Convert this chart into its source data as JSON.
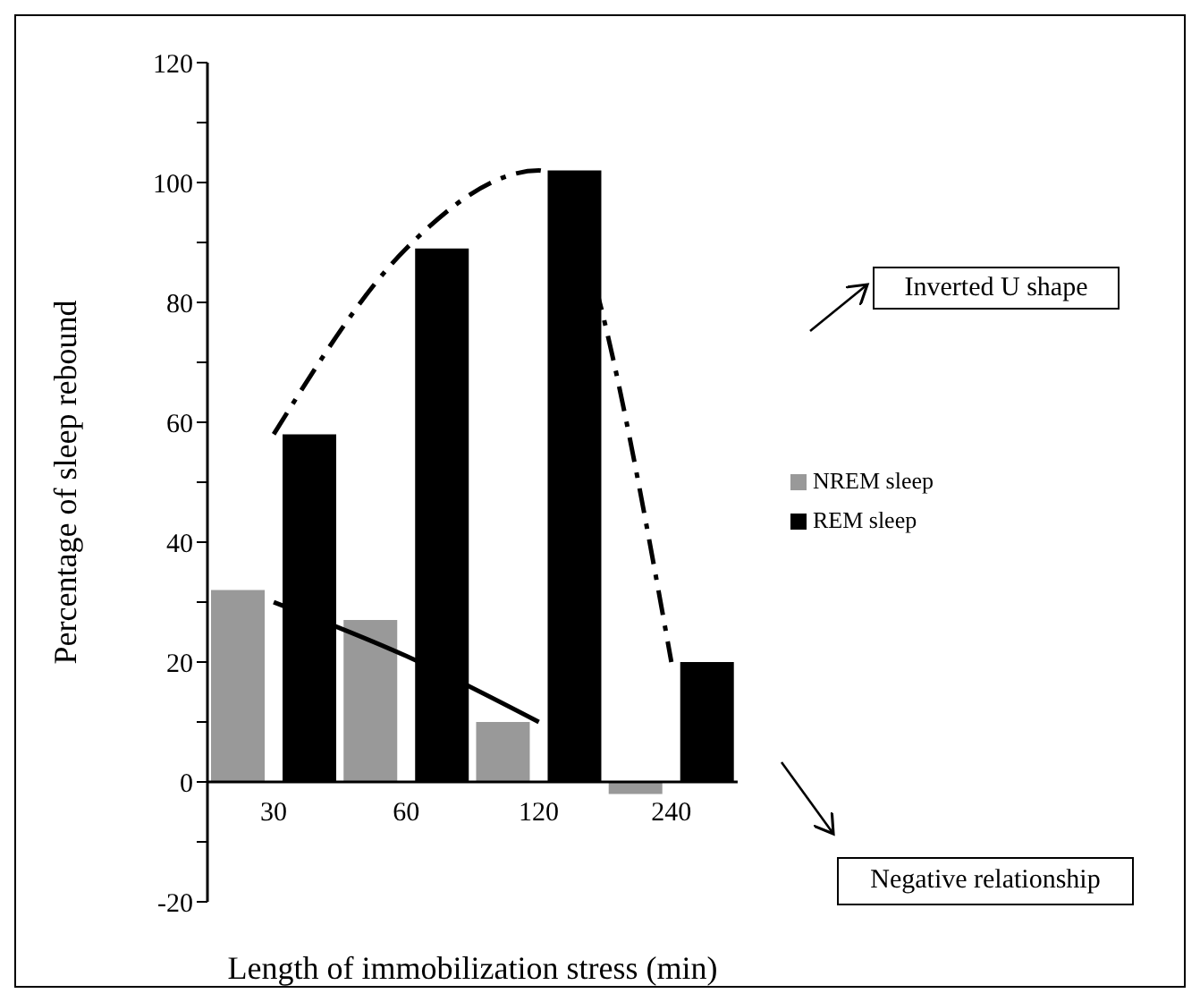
{
  "chart_data": {
    "type": "bar",
    "xlabel": "Length of immobilization stress (min)",
    "ylabel": "Percentage of sleep rebound",
    "categories": [
      "30",
      "60",
      "120",
      "240"
    ],
    "series": [
      {
        "name": "NREM sleep",
        "color": "#999999",
        "values": [
          32,
          27,
          10,
          -2
        ]
      },
      {
        "name": "REM sleep",
        "color": "#000000",
        "values": [
          58,
          89,
          102,
          20
        ]
      },
      {
        "type": "line",
        "color": "#000000",
        "line_style": "solid",
        "values": [
          30,
          21,
          10,
          null
        ]
      },
      {
        "type": "line",
        "color": "#000000",
        "line_style": "dashed",
        "values": [
          58,
          89,
          102,
          20
        ]
      }
    ],
    "ylim": [
      -20,
      120
    ],
    "yticks": [
      -20,
      {
        "value": -10,
        "label": null
      },
      0,
      {
        "value": 10,
        "label": null
      },
      20,
      {
        "value": 30,
        "label": null
      },
      40,
      {
        "value": 50,
        "label": null
      },
      60,
      {
        "value": 70,
        "label": null
      },
      80,
      {
        "value": 90,
        "label": null
      },
      100,
      {
        "value": 110,
        "label": null
      },
      120
    ],
    "legend": "right",
    "grid": false,
    "annotations": [
      "Inverted U shape",
      "Negative relationship"
    ]
  }
}
